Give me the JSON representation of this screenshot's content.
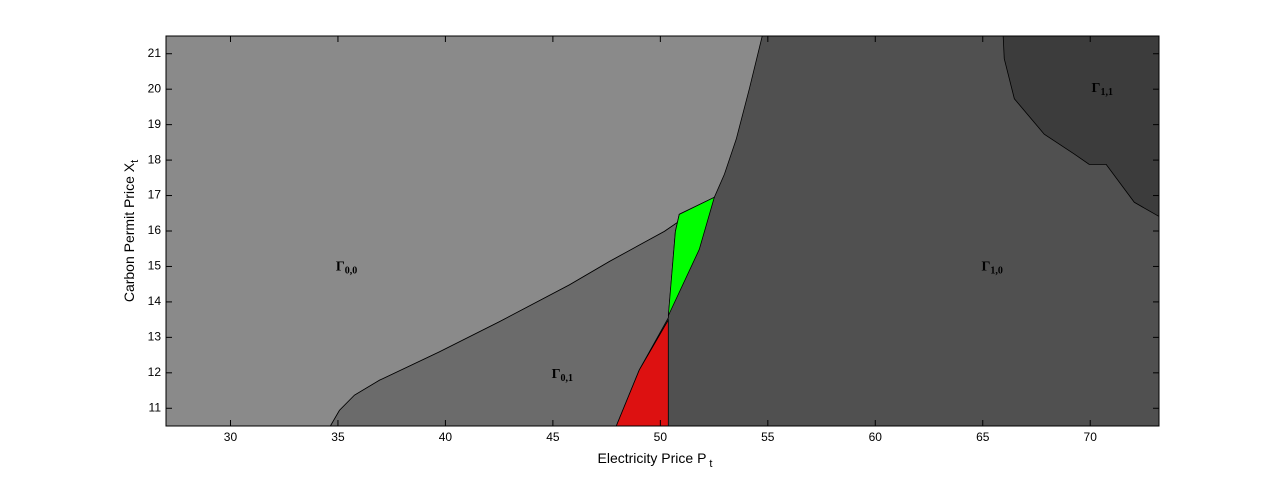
{
  "chart_data": {
    "type": "region",
    "xlabel": "Electricity Price P",
    "xlabel_sub": "t",
    "ylabel": "Carbon Permit Price X",
    "ylabel_sub": "t",
    "xlim": [
      27,
      73.2
    ],
    "ylim": [
      10.5,
      21.5
    ],
    "xticks": [
      30,
      35,
      40,
      45,
      50,
      55,
      60,
      65,
      70
    ],
    "yticks": [
      11,
      12,
      13,
      14,
      15,
      16,
      17,
      18,
      19,
      20,
      21
    ],
    "regions": [
      {
        "name": "Γ",
        "subscript": "1,0",
        "color": "#505050",
        "label_at": [
          65.44,
          14.97
        ],
        "polygon": [
          [
            27,
            10.5
          ],
          [
            73.2,
            10.5
          ],
          [
            73.2,
            21.5
          ],
          [
            27,
            21.5
          ]
        ]
      },
      {
        "name": "Γ",
        "subscript": "0,0",
        "color": "#8a8a8a",
        "label_at": [
          35.4,
          14.97
        ],
        "polygon": [
          [
            27,
            21.5
          ],
          [
            54.74,
            21.5
          ],
          [
            54.14,
            20.01
          ],
          [
            53.53,
            18.59
          ],
          [
            52.98,
            17.6
          ],
          [
            52.51,
            16.95
          ],
          [
            51.35,
            16.47
          ],
          [
            50.19,
            15.99
          ],
          [
            47.63,
            15.14
          ],
          [
            45.77,
            14.48
          ],
          [
            42.51,
            13.44
          ],
          [
            39.72,
            12.59
          ],
          [
            36.93,
            11.79
          ],
          [
            35.77,
            11.37
          ],
          [
            35.07,
            10.94
          ],
          [
            34.65,
            10.5
          ],
          [
            27,
            10.5
          ]
        ]
      },
      {
        "name": "Γ",
        "subscript": "0,1",
        "color": "#6b6b6b",
        "label_at": [
          45.44,
          11.94
        ],
        "polygon": [
          [
            52.51,
            16.95
          ],
          [
            51.35,
            16.47
          ],
          [
            50.19,
            15.99
          ],
          [
            47.63,
            15.14
          ],
          [
            45.77,
            14.48
          ],
          [
            42.51,
            13.44
          ],
          [
            39.72,
            12.59
          ],
          [
            36.93,
            11.79
          ],
          [
            35.77,
            11.37
          ],
          [
            35.07,
            10.94
          ],
          [
            34.65,
            10.5
          ],
          [
            47.95,
            10.5
          ],
          [
            49.02,
            12.08
          ],
          [
            50.37,
            13.55
          ],
          [
            50.7,
            15.99
          ],
          [
            50.88,
            16.47
          ]
        ]
      },
      {
        "name": "Γ",
        "subscript": "1,1",
        "color": "#3c3c3c",
        "label_at": [
          70.56,
          20.01
        ],
        "polygon": [
          [
            65.95,
            21.5
          ],
          [
            66.0,
            20.86
          ],
          [
            66.47,
            19.73
          ],
          [
            67.86,
            18.73
          ],
          [
            69.26,
            18.17
          ],
          [
            69.95,
            17.88
          ],
          [
            70.74,
            17.88
          ],
          [
            72.05,
            16.81
          ],
          [
            73.2,
            16.41
          ],
          [
            73.2,
            21.5
          ]
        ]
      },
      {
        "color": "#00ff00",
        "polygon": [
          [
            52.51,
            16.95
          ],
          [
            50.88,
            16.47
          ],
          [
            50.7,
            15.99
          ],
          [
            50.37,
            13.61
          ],
          [
            51.81,
            15.48
          ]
        ]
      },
      {
        "color": "#dd1111",
        "polygon": [
          [
            50.37,
            13.49
          ],
          [
            49.02,
            12.08
          ],
          [
            47.95,
            10.5
          ],
          [
            50.37,
            10.5
          ]
        ]
      }
    ]
  }
}
